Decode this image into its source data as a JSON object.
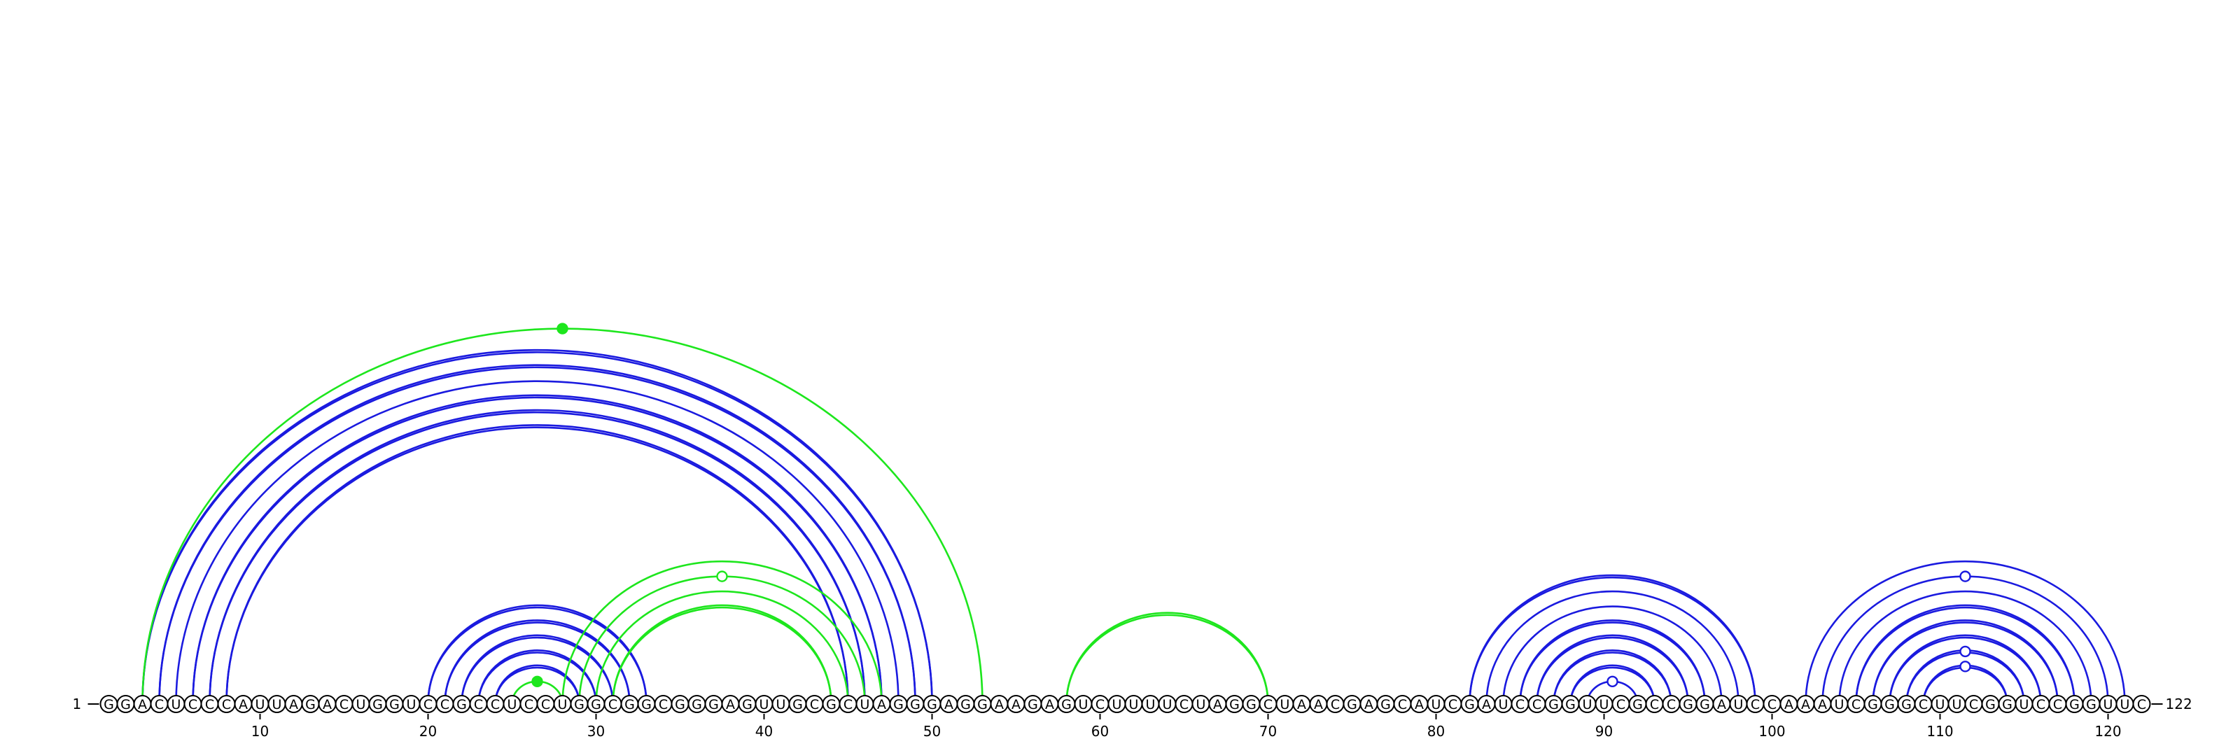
{
  "sequence": "GGACUCCCAUUAGACUGGUCCGCCUCCUGGCGGCGGGAGUUGCGCUAGGGAGGAAGAGUCUUUUCUAGGCUAACGAGCAUCGAUCCGGUUCGCCGGAUCCAAAUCGGGCUUCGGUCCGGUUC",
  "start_label": "1",
  "end_label": "122",
  "ticks": [
    10,
    20,
    30,
    40,
    50,
    60,
    70,
    80,
    90,
    100,
    110,
    120
  ],
  "colors": {
    "blue": "#1a1adf",
    "green": "#1de61d"
  },
  "arcs": [
    {
      "i": 4,
      "j": 49,
      "color": "blue",
      "double": true
    },
    {
      "i": 5,
      "j": 48,
      "color": "blue",
      "double": false
    },
    {
      "i": 6,
      "j": 47,
      "color": "blue",
      "double": true
    },
    {
      "i": 7,
      "j": 46,
      "color": "blue",
      "double": true
    },
    {
      "i": 8,
      "j": 45,
      "color": "blue",
      "double": true
    },
    {
      "i": 3,
      "j": 50,
      "color": "blue",
      "double": true
    },
    {
      "i": 3,
      "j": 53,
      "color": "green",
      "double": false,
      "marker": "filled"
    },
    {
      "i": 20,
      "j": 33,
      "color": "blue",
      "double": true
    },
    {
      "i": 21,
      "j": 32,
      "color": "blue",
      "double": true
    },
    {
      "i": 22,
      "j": 31,
      "color": "blue",
      "double": true
    },
    {
      "i": 23,
      "j": 30,
      "color": "blue",
      "double": true
    },
    {
      "i": 24,
      "j": 29,
      "color": "blue",
      "double": true
    },
    {
      "i": 25,
      "j": 28,
      "color": "green",
      "double": false,
      "marker": "filled"
    },
    {
      "i": 28,
      "j": 47,
      "color": "green",
      "double": false
    },
    {
      "i": 29,
      "j": 46,
      "color": "green",
      "double": false,
      "marker": "hollow"
    },
    {
      "i": 30,
      "j": 45,
      "color": "green",
      "double": false
    },
    {
      "i": 31,
      "j": 44,
      "color": "green",
      "double": true
    },
    {
      "i": 58,
      "j": 70,
      "color": "green",
      "double": true
    },
    {
      "i": 82,
      "j": 99,
      "color": "blue",
      "double": true
    },
    {
      "i": 83,
      "j": 98,
      "color": "blue",
      "double": false
    },
    {
      "i": 84,
      "j": 97,
      "color": "blue",
      "double": false
    },
    {
      "i": 85,
      "j": 96,
      "color": "blue",
      "double": true
    },
    {
      "i": 86,
      "j": 95,
      "color": "blue",
      "double": true
    },
    {
      "i": 87,
      "j": 94,
      "color": "blue",
      "double": true
    },
    {
      "i": 88,
      "j": 93,
      "color": "blue",
      "double": true
    },
    {
      "i": 89,
      "j": 92,
      "color": "blue",
      "double": false,
      "marker": "hollow"
    },
    {
      "i": 102,
      "j": 121,
      "color": "blue",
      "double": false
    },
    {
      "i": 103,
      "j": 120,
      "color": "blue",
      "double": false,
      "marker": "hollow"
    },
    {
      "i": 104,
      "j": 119,
      "color": "blue",
      "double": false
    },
    {
      "i": 105,
      "j": 118,
      "color": "blue",
      "double": true
    },
    {
      "i": 106,
      "j": 117,
      "color": "blue",
      "double": true
    },
    {
      "i": 107,
      "j": 116,
      "color": "blue",
      "double": true
    },
    {
      "i": 108,
      "j": 115,
      "color": "blue",
      "double": true,
      "marker": "hollow"
    },
    {
      "i": 109,
      "j": 114,
      "color": "blue",
      "double": true,
      "marker": "hollow"
    }
  ]
}
